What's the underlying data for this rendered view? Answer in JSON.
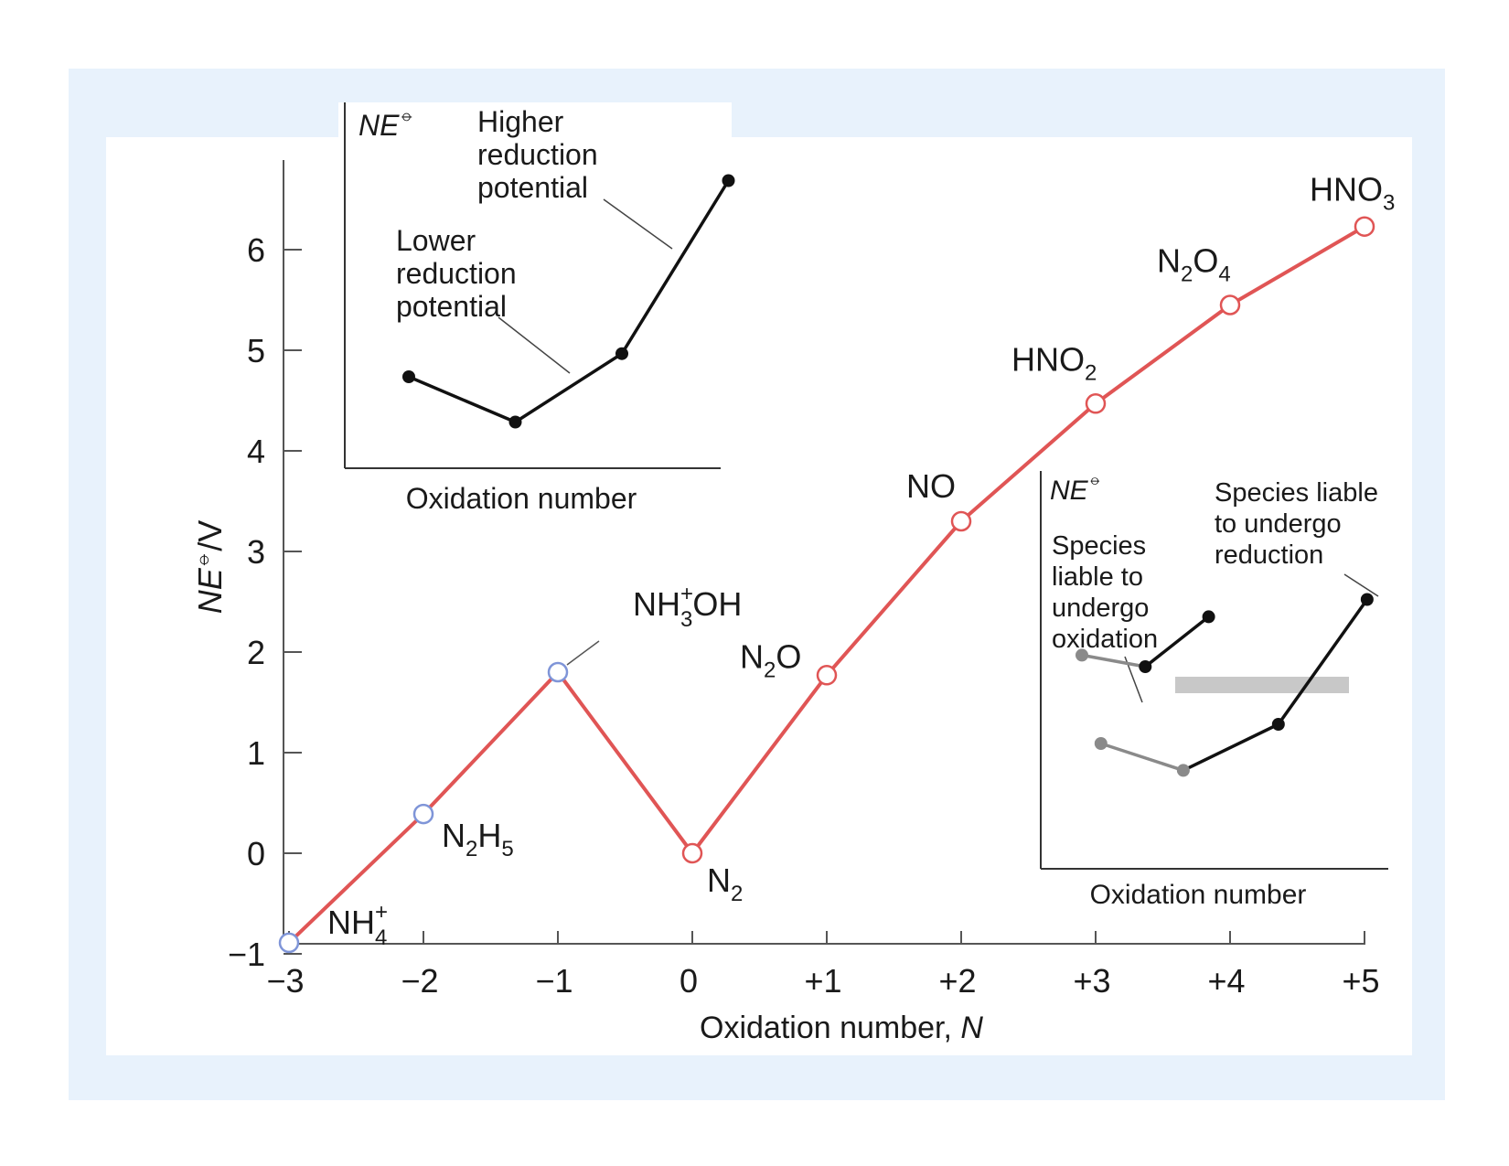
{
  "colors": {
    "outer_frame": "#e8f2fc",
    "panel": "#ffffff",
    "line": "#e05555",
    "marker_red": "#e05555",
    "marker_blue": "#7f95d8",
    "inset_black": "#111111",
    "inset_gray": "#8a8a8a",
    "band": "#c8c8c8"
  },
  "chart_data": [
    {
      "type": "line",
      "title": "",
      "xlabel": "Oxidation number, N",
      "xlabel_text": "Oxidation number, ",
      "xlabel_italic": "N",
      "ylabel": "NE⦵/V",
      "ylabel_italic": "NE",
      "ylabel_sup": "⦵",
      "ylabel_unit": "/V",
      "x_ticks": [
        -3,
        -2,
        -1,
        0,
        1,
        2,
        3,
        4,
        5
      ],
      "x_tick_labels": [
        "−3",
        "−2",
        "−1",
        "0",
        "+1",
        "+2",
        "+3",
        "+4",
        "+5"
      ],
      "y_ticks": [
        -1,
        0,
        1,
        2,
        3,
        4,
        5,
        6
      ],
      "y_tick_labels": [
        "−1",
        "0",
        "1",
        "2",
        "3",
        "4",
        "5",
        "6"
      ],
      "xlim": [
        -3.1,
        5.1
      ],
      "ylim": [
        -1.1,
        6.9
      ],
      "grid": false,
      "series": [
        {
          "points": [
            {
              "x": -3,
              "y": -0.89,
              "species": "NH₄⁺",
              "main": "NH",
              "sub": "4",
              "sup": "+",
              "tail": "",
              "marker": "blue"
            },
            {
              "x": -2,
              "y": 0.39,
              "species": "N₂H₅",
              "main": "N",
              "sub": "2",
              "sup": "",
              "tail": "H5",
              "marker": "blue"
            },
            {
              "x": -1,
              "y": 1.8,
              "species": "NH₃OH⁺",
              "main": "NH",
              "sub": "3",
              "sup": "+",
              "tail": "OH",
              "marker": "blue"
            },
            {
              "x": 0,
              "y": 0,
              "species": "N₂",
              "main": "N",
              "sub": "2",
              "sup": "",
              "tail": "",
              "marker": "red"
            },
            {
              "x": 1,
              "y": 1.77,
              "species": "N₂O",
              "main": "N",
              "sub": "2",
              "sup": "",
              "tail": "O",
              "marker": "red"
            },
            {
              "x": 2,
              "y": 3.3,
              "species": "NO",
              "main": "NO",
              "sub": "",
              "sup": "",
              "tail": "",
              "marker": "red"
            },
            {
              "x": 3,
              "y": 4.47,
              "species": "HNO₂",
              "main": "HNO",
              "sub": "2",
              "sup": "",
              "tail": "",
              "marker": "red"
            },
            {
              "x": 4,
              "y": 5.45,
              "species": "N₂O₄",
              "main": "N",
              "sub": "2",
              "sup": "",
              "tail": "O4",
              "marker": "red"
            },
            {
              "x": 5,
              "y": 6.23,
              "species": "HNO₃",
              "main": "HNO",
              "sub": "3",
              "sup": "",
              "tail": "",
              "marker": "red"
            }
          ]
        }
      ]
    },
    {
      "type": "line",
      "ylabel": "NE⦵",
      "ylabel_italic": "NE",
      "ylabel_sup": "⦵",
      "xlabel": "Oxidation number",
      "x": [
        0,
        1,
        2,
        3
      ],
      "series": [
        {
          "values": [
            4.75,
            4.3,
            4.98,
            6.7
          ]
        }
      ],
      "ylim": [
        3.8,
        7.3
      ],
      "annotations": [
        "Higher reduction potential",
        "Lower reduction potential"
      ]
    },
    {
      "type": "line",
      "ylabel": "NE⦵",
      "ylabel_italic": "NE",
      "ylabel_sup": "⦵",
      "xlabel": "Oxidation number",
      "series": [
        {
          "x": [
            0,
            1,
            2
          ],
          "values": [
            0.66,
            0.6,
            0.86
          ],
          "colors": [
            "gray",
            "black",
            "black"
          ]
        },
        {
          "x": [
            0.3,
            1.6,
            3.1,
            4.5
          ],
          "values": [
            0.2,
            0.06,
            0.3,
            0.95
          ],
          "colors": [
            "gray",
            "gray",
            "black",
            "black"
          ]
        }
      ],
      "ylim": [
        -0.5,
        1.25
      ],
      "annotations": [
        "Species liable to undergo oxidation",
        "Species liable to undergo reduction"
      ]
    }
  ],
  "inset_a_text": {
    "higher": [
      "Higher",
      "reduction",
      "potential"
    ],
    "lower": [
      "Lower",
      "reduction",
      "potential"
    ]
  },
  "inset_b_text": {
    "oxidation": [
      "Species",
      "liable to",
      "undergo",
      "oxidation"
    ],
    "reduction": [
      "Species liable",
      "to undergo",
      "reduction"
    ]
  }
}
